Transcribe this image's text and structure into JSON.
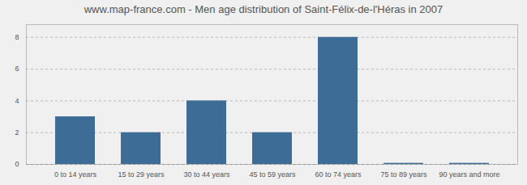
{
  "chart_data": {
    "type": "bar",
    "title": "www.map-france.com - Men age distribution of Saint-Félix-de-l'Héras in 2007",
    "categories": [
      "0 to 14 years",
      "15 to 29 years",
      "30 to 44 years",
      "45 to 59 years",
      "60 to 74 years",
      "75 to 89 years",
      "90 years and more"
    ],
    "values": [
      3,
      2,
      4,
      2,
      8,
      0.07,
      0.07
    ],
    "color": "#3d6d96",
    "ylim": [
      0,
      8.8
    ],
    "yticks": [
      0,
      2,
      4,
      6,
      8
    ],
    "grid": true
  }
}
